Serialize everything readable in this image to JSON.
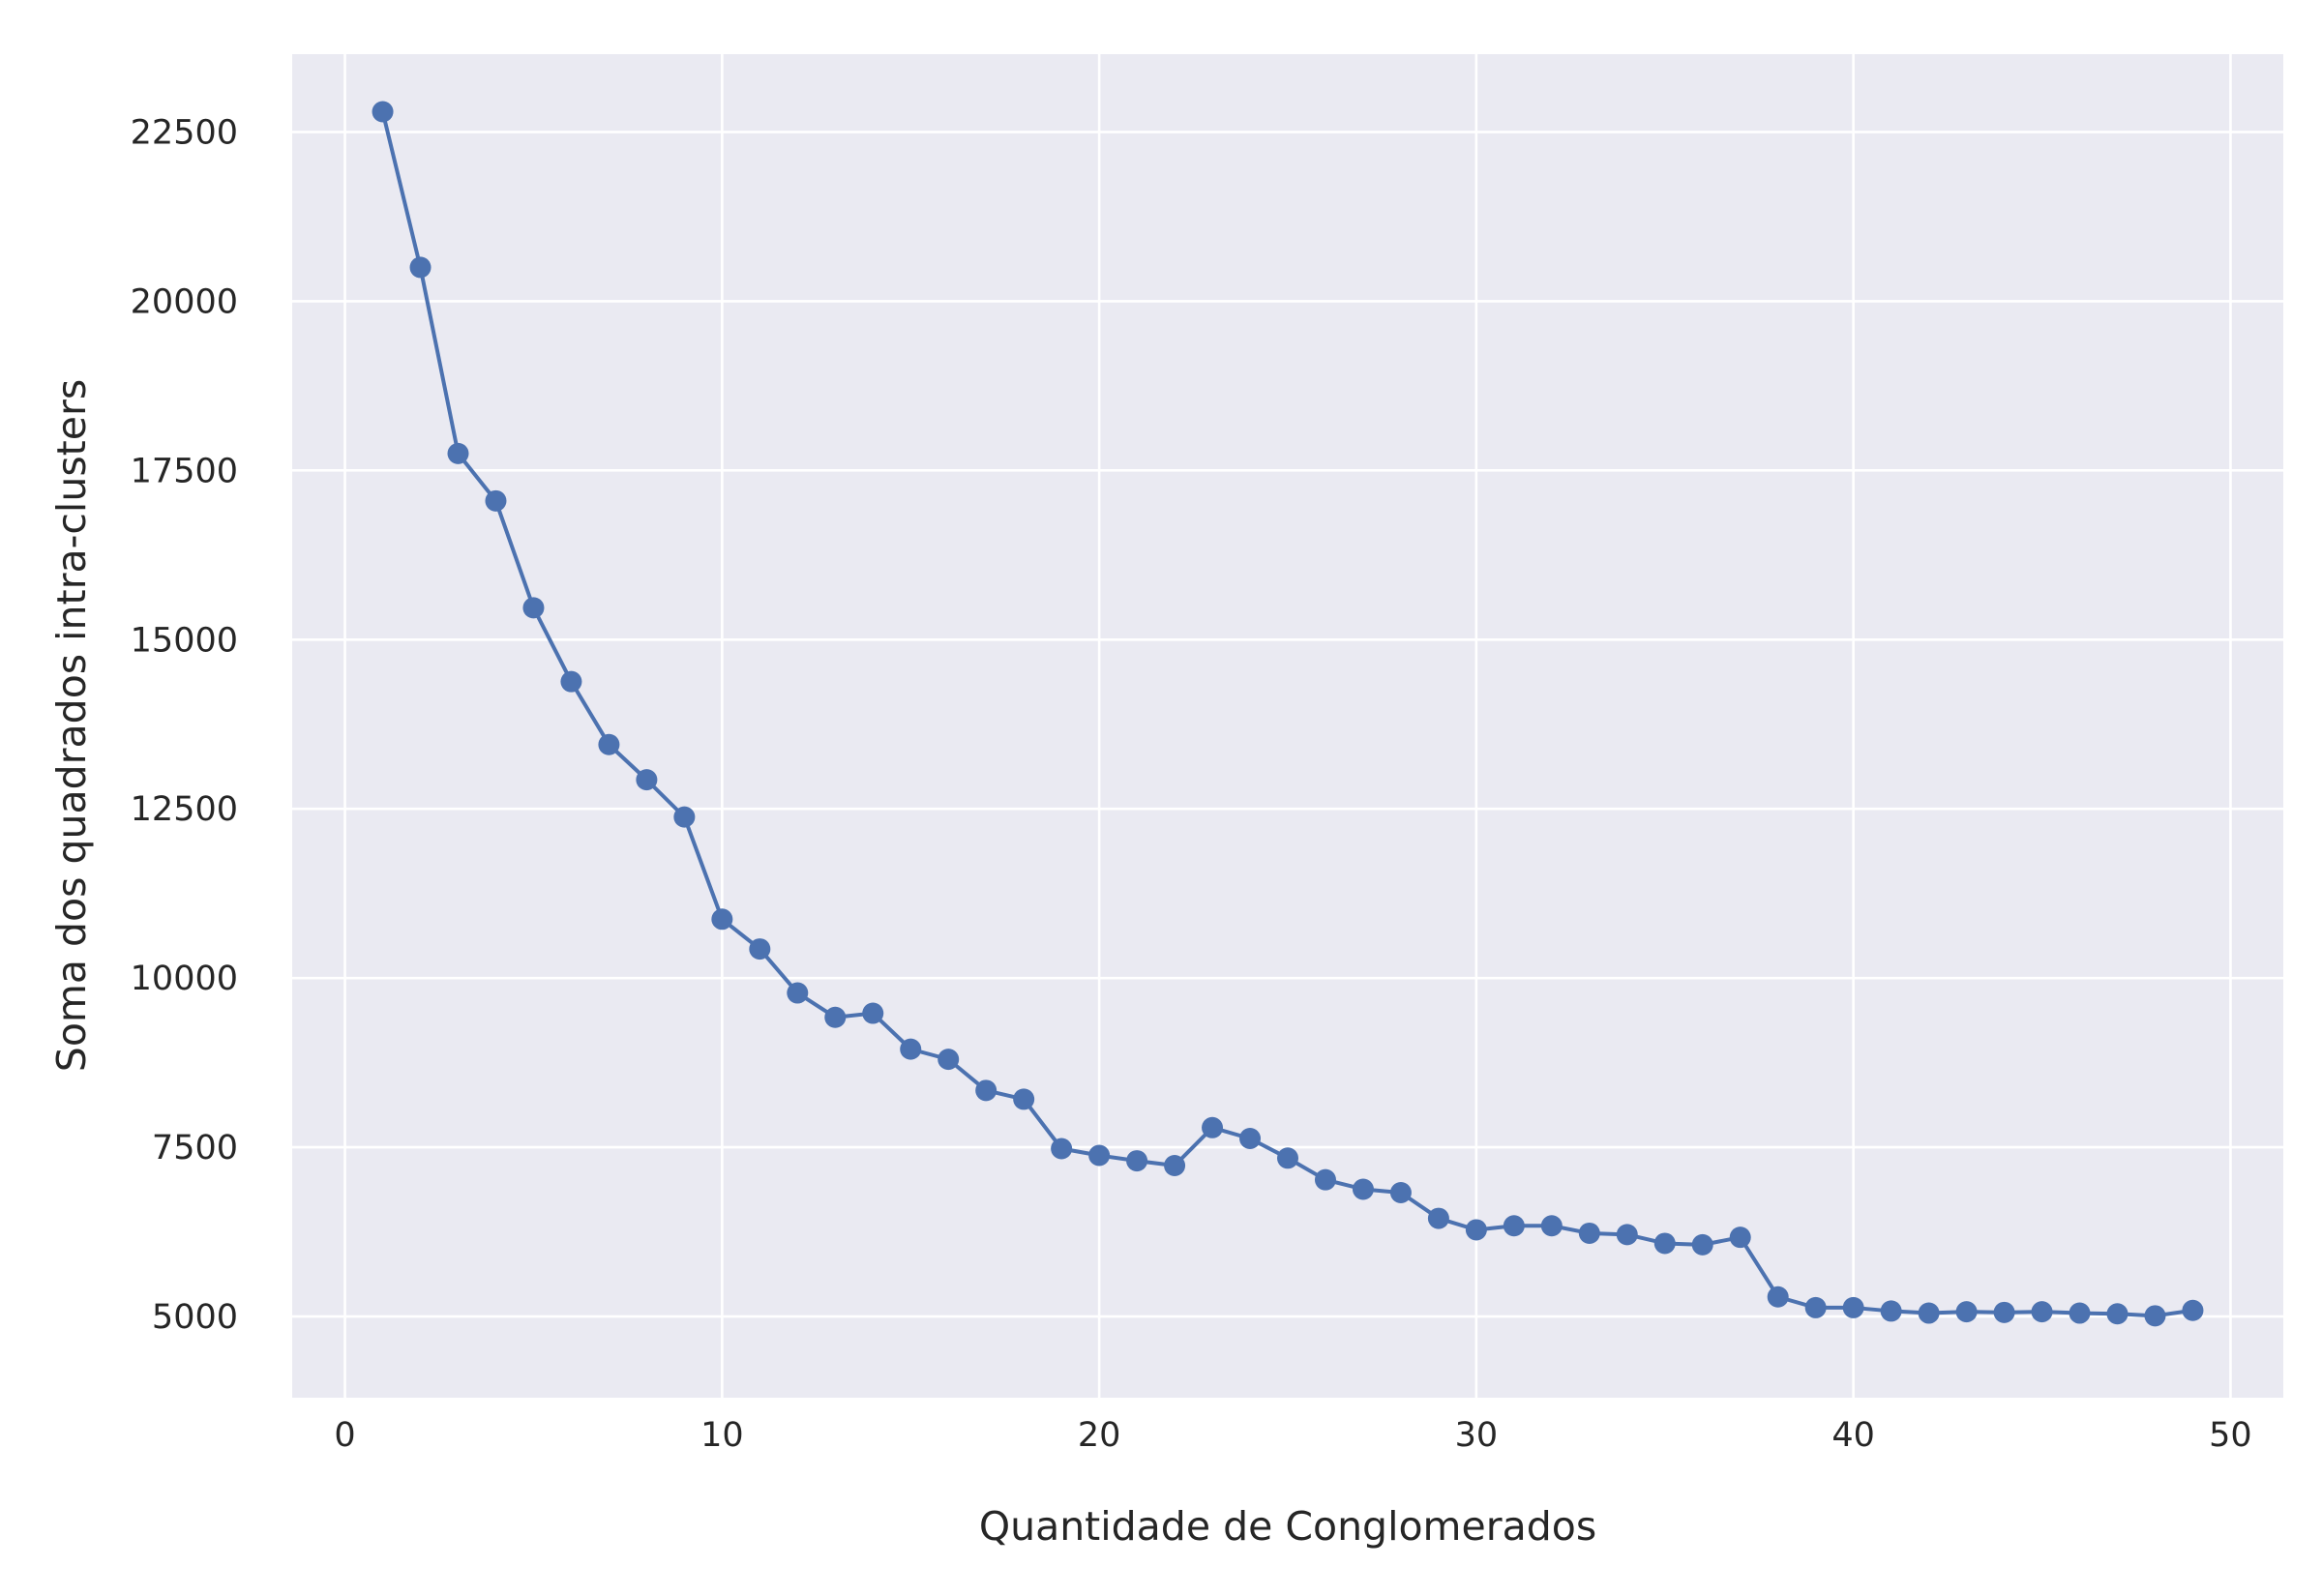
{
  "chart_data": {
    "type": "line",
    "title": "",
    "xlabel": "Quantidade de Conglomerados",
    "ylabel": "Soma dos quadrados intra-clusters",
    "xlim": [
      -1.4,
      51.4
    ],
    "ylim": [
      3800,
      23650
    ],
    "xticks": [
      0,
      10,
      20,
      30,
      40,
      50
    ],
    "yticks": [
      5000,
      7500,
      10000,
      12500,
      15000,
      17500,
      20000,
      22500
    ],
    "grid": true,
    "background": "#eaeaf2",
    "grid_color": "#ffffff",
    "series": [
      {
        "color": "#4c72b0",
        "marker": "circle",
        "x": [
          1,
          2,
          3,
          4,
          5,
          6,
          7,
          8,
          9,
          10,
          11,
          12,
          13,
          14,
          15,
          16,
          17,
          18,
          19,
          20,
          21,
          22,
          23,
          24,
          25,
          26,
          27,
          28,
          29,
          30,
          31,
          32,
          33,
          34,
          35,
          36,
          37,
          38,
          39,
          40,
          41,
          42,
          43,
          44,
          45,
          46,
          47,
          48,
          49
        ],
        "y": [
          22800,
          20500,
          17750,
          17050,
          15470,
          14380,
          13450,
          12930,
          12380,
          10870,
          10430,
          9780,
          9420,
          9480,
          8950,
          8800,
          8340,
          8210,
          7480,
          7380,
          7300,
          7230,
          7790,
          7630,
          7340,
          7020,
          6880,
          6830,
          6450,
          6280,
          6340,
          6340,
          6230,
          6210,
          6080,
          6060,
          6170,
          5290,
          5130,
          5130,
          5080,
          5050,
          5070,
          5060,
          5070,
          5050,
          5040,
          5010,
          5090
        ]
      }
    ]
  }
}
